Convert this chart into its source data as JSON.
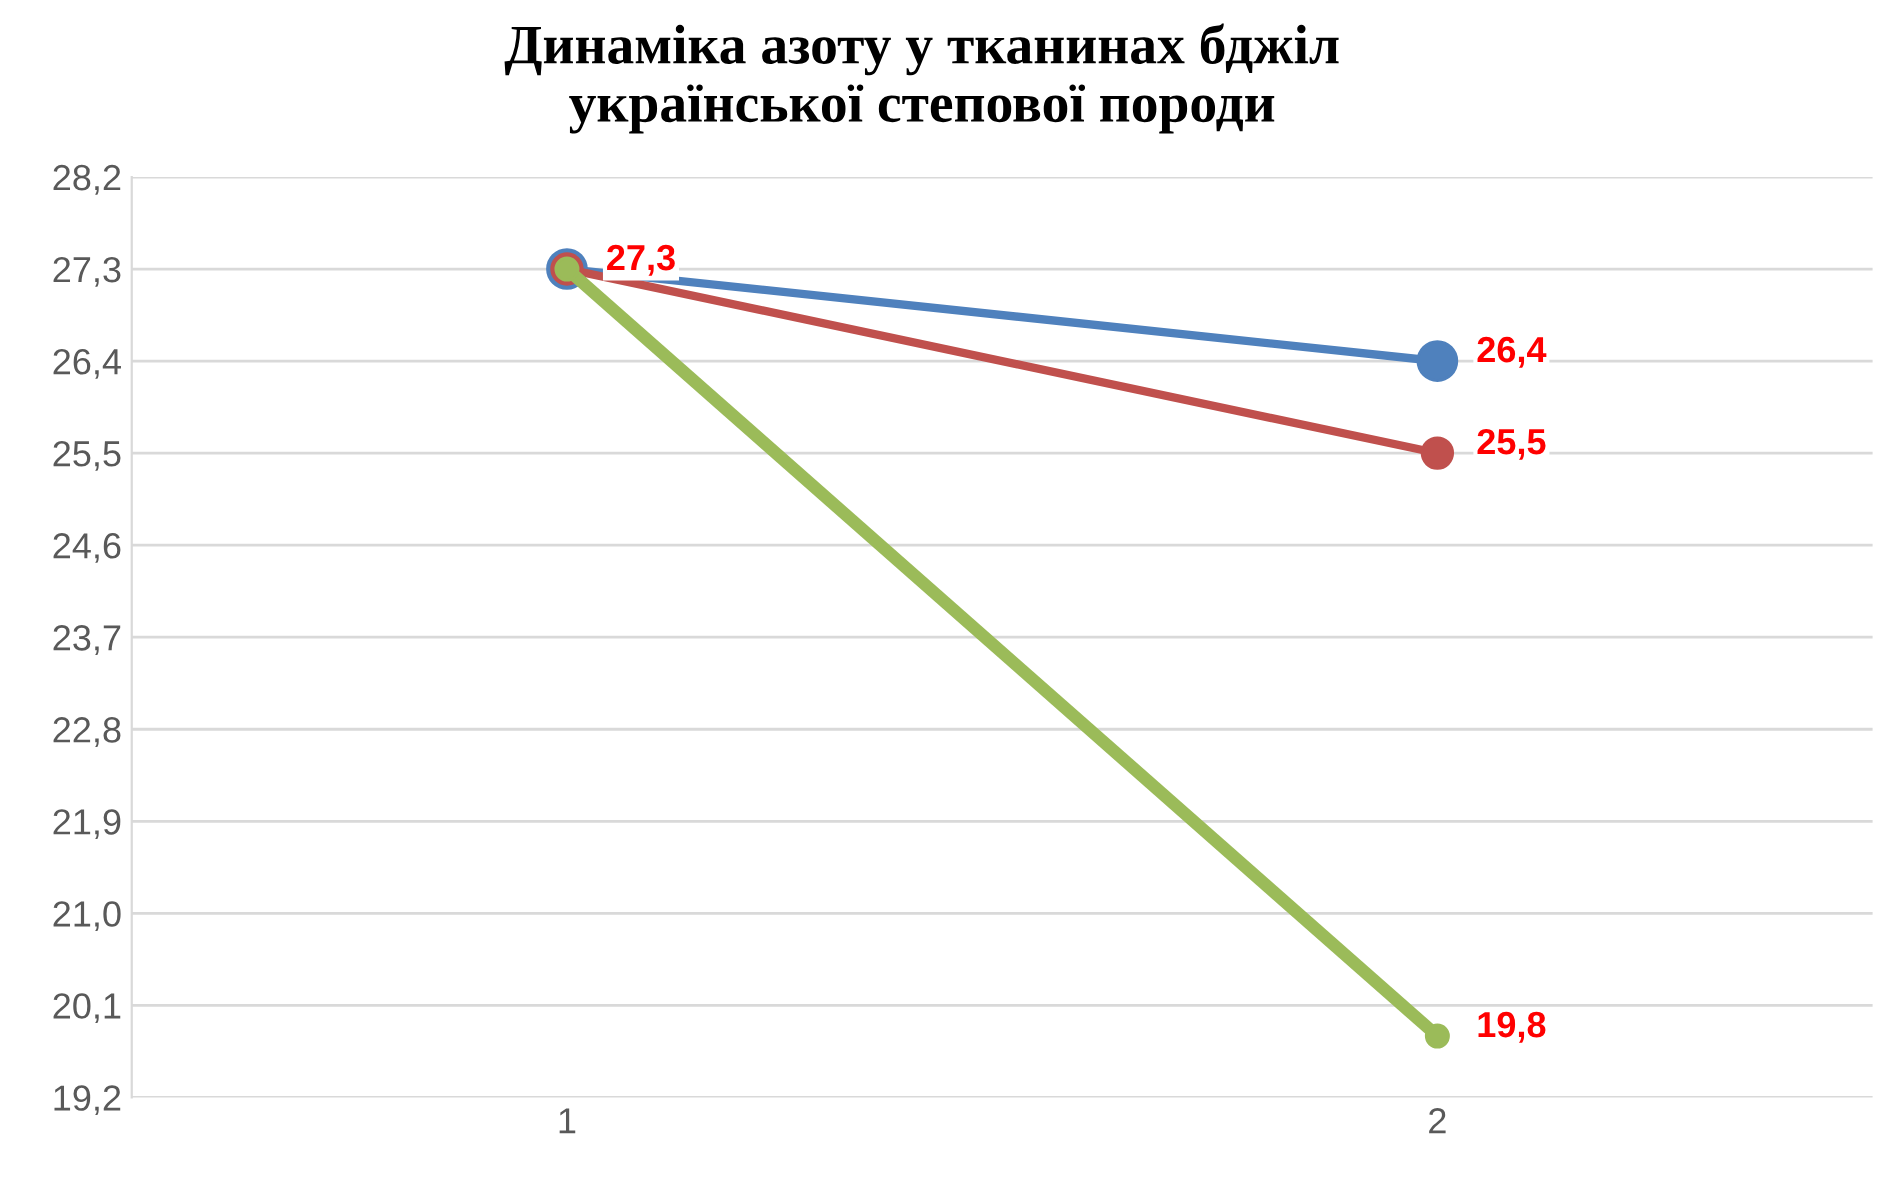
{
  "chart_data": {
    "type": "line",
    "title": "Динаміка азоту у тканинах бджіл\nукраїнської степової породи",
    "categories": [
      "1",
      "2"
    ],
    "series": [
      {
        "color": "#4f81bd",
        "values": [
          27.3,
          26.4
        ],
        "value_labels": [
          "27,3",
          "26,4"
        ]
      },
      {
        "color": "#c0504d",
        "values": [
          27.3,
          25.5
        ],
        "value_labels": [
          null,
          "25,5"
        ]
      },
      {
        "color": "#9bbb59",
        "values": [
          27.3,
          19.8
        ],
        "value_labels": [
          null,
          "19,8"
        ]
      }
    ],
    "ylim": [
      19.2,
      28.2
    ],
    "yticks": [
      {
        "value": 19.2,
        "label": "19,2"
      },
      {
        "value": 20.1,
        "label": "20,1"
      },
      {
        "value": 21.0,
        "label": "21,0"
      },
      {
        "value": 21.9,
        "label": "21,9"
      },
      {
        "value": 22.8,
        "label": "22,8"
      },
      {
        "value": 23.7,
        "label": "23,7"
      },
      {
        "value": 24.6,
        "label": "24,6"
      },
      {
        "value": 25.5,
        "label": "25,5"
      },
      {
        "value": 26.4,
        "label": "26,4"
      },
      {
        "value": 27.3,
        "label": "27,3"
      },
      {
        "value": 28.2,
        "label": "28,2"
      }
    ],
    "grid": "y",
    "marker": "circle",
    "line_style": "solid"
  }
}
